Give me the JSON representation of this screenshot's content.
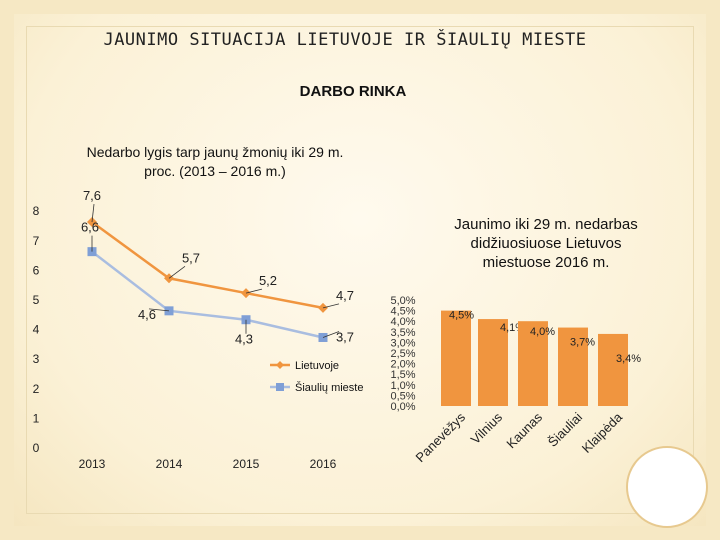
{
  "header": {
    "title": "JAUNIMO SITUACIJA LIETUVOJE IR ŠIAULIŲ MIESTE",
    "subtitle": "DARBO RINKA"
  },
  "chart_data": [
    {
      "type": "line",
      "title_lines": [
        "Nedarbo lygis tarp jaunų žmonių iki 29 m.",
        "proc.  (2013 – 2016 m.)"
      ],
      "categories": [
        "2013",
        "2014",
        "2015",
        "2016"
      ],
      "y_ticks": [
        "0",
        "1",
        "2",
        "3",
        "4",
        "5",
        "6",
        "7",
        "8"
      ],
      "ylim": [
        0,
        8
      ],
      "series": [
        {
          "name": "Lietuvoje",
          "values": [
            7.6,
            5.7,
            5.2,
            4.7
          ],
          "labels": [
            "7,6",
            "5,7",
            "5,2",
            "4,7"
          ],
          "color": "#f0953f",
          "marker": "diamond"
        },
        {
          "name": "Šiaulių mieste",
          "values": [
            6.6,
            4.6,
            4.3,
            3.7
          ],
          "labels": [
            "6,6",
            "4,6",
            "4,3",
            "3,7"
          ],
          "color": "#a9bde0",
          "marker": "square"
        }
      ],
      "legend_position": "right",
      "grid": false
    },
    {
      "type": "bar",
      "title_lines": [
        "Jaunimo iki 29 m. nedarbas",
        "didžiuosiuose Lietuvos",
        "miestuose 2016 m."
      ],
      "categories": [
        "Panevėžys",
        "Vilnius",
        "Kaunas",
        "Šiauliai",
        "Klaipėda"
      ],
      "values": [
        4.5,
        4.1,
        4.0,
        3.7,
        3.4
      ],
      "labels": [
        "4,5%",
        "4,1%",
        "4,0%",
        "3,7%",
        "3,4%"
      ],
      "y_ticks": [
        "0,0%",
        "0,5%",
        "1,0%",
        "1,5%",
        "2,0%",
        "2,5%",
        "3,0%",
        "3,5%",
        "4,0%",
        "4,5%",
        "5,0%"
      ],
      "ylim": [
        0,
        5
      ],
      "bar_color": "#f0953f",
      "grid": false
    }
  ]
}
